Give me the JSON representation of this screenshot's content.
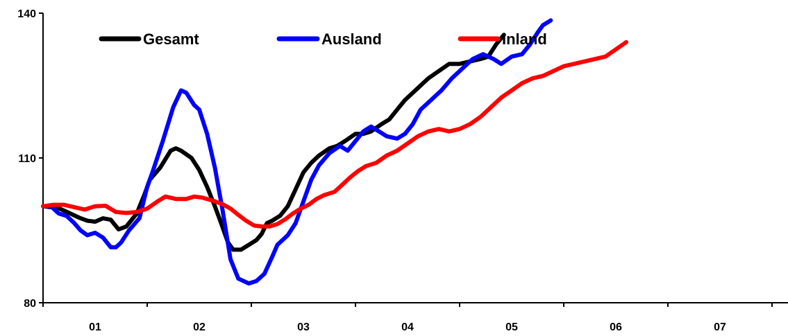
{
  "chart_data": {
    "type": "line",
    "title": "",
    "xlabel": "",
    "ylabel": "",
    "ylim": [
      80,
      140
    ],
    "y_ticks": [
      "80",
      "110",
      "140"
    ],
    "x_categories": [
      "01",
      "02",
      "03",
      "04",
      "05",
      "06",
      "07"
    ],
    "grid": false,
    "legend_position": "top-left, inside plot, horizontal",
    "series": [
      {
        "name": "Gesamt",
        "color": "#000000",
        "points": [
          [
            0.0,
            100.0
          ],
          [
            0.3,
            99.6
          ],
          [
            0.5,
            98.6
          ],
          [
            0.7,
            97.6
          ],
          [
            0.85,
            97.0
          ],
          [
            1.0,
            96.8
          ],
          [
            1.15,
            97.5
          ],
          [
            1.3,
            97.2
          ],
          [
            1.45,
            95.2
          ],
          [
            1.6,
            95.8
          ],
          [
            1.8,
            98.5
          ],
          [
            1.95,
            102.5
          ],
          [
            2.05,
            105.5
          ],
          [
            2.25,
            108.0
          ],
          [
            2.45,
            111.5
          ],
          [
            2.55,
            112.0
          ],
          [
            2.65,
            111.5
          ],
          [
            2.85,
            110.0
          ],
          [
            3.0,
            107.5
          ],
          [
            3.15,
            104.0
          ],
          [
            3.3,
            100.0
          ],
          [
            3.42,
            96.5
          ],
          [
            3.55,
            92.5
          ],
          [
            3.65,
            91.0
          ],
          [
            3.8,
            91.0
          ],
          [
            3.95,
            92.0
          ],
          [
            4.1,
            93.0
          ],
          [
            4.2,
            94.3
          ],
          [
            4.3,
            96.5
          ],
          [
            4.4,
            97.0
          ],
          [
            4.55,
            98.0
          ],
          [
            4.7,
            100.0
          ],
          [
            4.85,
            103.5
          ],
          [
            5.0,
            107.0
          ],
          [
            5.15,
            109.0
          ],
          [
            5.3,
            110.5
          ],
          [
            5.5,
            112.0
          ],
          [
            5.65,
            112.5
          ],
          [
            5.8,
            113.5
          ],
          [
            6.0,
            115.0
          ],
          [
            6.15,
            115.0
          ],
          [
            6.3,
            115.5
          ],
          [
            6.5,
            117.0
          ],
          [
            6.65,
            118.0
          ],
          [
            6.8,
            120.0
          ],
          [
            6.95,
            122.0
          ],
          [
            7.2,
            124.5
          ],
          [
            7.4,
            126.5
          ],
          [
            7.6,
            128.0
          ],
          [
            7.8,
            129.5
          ],
          [
            8.0,
            129.5
          ],
          [
            8.2,
            130.0
          ],
          [
            8.4,
            130.5
          ],
          [
            8.55,
            131.0
          ],
          [
            8.7,
            133.5
          ],
          [
            8.85,
            135.5
          ]
        ]
      },
      {
        "name": "Ausland",
        "color": "#0000ff",
        "points": [
          [
            0.0,
            100.0
          ],
          [
            0.15,
            100.0
          ],
          [
            0.3,
            98.5
          ],
          [
            0.45,
            98.0
          ],
          [
            0.6,
            96.5
          ],
          [
            0.72,
            95.0
          ],
          [
            0.85,
            94.0
          ],
          [
            1.0,
            94.5
          ],
          [
            1.15,
            93.5
          ],
          [
            1.3,
            91.5
          ],
          [
            1.4,
            91.5
          ],
          [
            1.5,
            92.5
          ],
          [
            1.65,
            95.0
          ],
          [
            1.85,
            97.5
          ],
          [
            2.0,
            104.0
          ],
          [
            2.1,
            107.0
          ],
          [
            2.3,
            113.5
          ],
          [
            2.5,
            120.5
          ],
          [
            2.65,
            124.0
          ],
          [
            2.75,
            123.5
          ],
          [
            2.9,
            121.0
          ],
          [
            3.0,
            120.0
          ],
          [
            3.15,
            115.0
          ],
          [
            3.3,
            108.0
          ],
          [
            3.45,
            99.0
          ],
          [
            3.6,
            89.0
          ],
          [
            3.75,
            85.0
          ],
          [
            3.95,
            84.0
          ],
          [
            4.1,
            84.5
          ],
          [
            4.25,
            86.0
          ],
          [
            4.4,
            89.5
          ],
          [
            4.5,
            92.0
          ],
          [
            4.7,
            94.0
          ],
          [
            4.85,
            96.5
          ],
          [
            5.0,
            101.0
          ],
          [
            5.15,
            105.5
          ],
          [
            5.3,
            108.5
          ],
          [
            5.5,
            111.0
          ],
          [
            5.7,
            112.5
          ],
          [
            5.85,
            111.5
          ],
          [
            6.0,
            113.5
          ],
          [
            6.15,
            115.5
          ],
          [
            6.3,
            116.5
          ],
          [
            6.45,
            115.5
          ],
          [
            6.6,
            114.5
          ],
          [
            6.8,
            114.0
          ],
          [
            6.95,
            115.0
          ],
          [
            7.1,
            117.0
          ],
          [
            7.25,
            120.0
          ],
          [
            7.45,
            122.0
          ],
          [
            7.65,
            124.0
          ],
          [
            7.85,
            126.5
          ],
          [
            8.05,
            128.5
          ],
          [
            8.25,
            130.5
          ],
          [
            8.45,
            131.5
          ],
          [
            8.65,
            130.5
          ],
          [
            8.8,
            129.5
          ],
          [
            9.0,
            131.0
          ],
          [
            9.2,
            131.5
          ],
          [
            9.35,
            133.5
          ],
          [
            9.5,
            136.0
          ],
          [
            9.6,
            137.5
          ],
          [
            9.75,
            138.5
          ]
        ]
      },
      {
        "name": "Inland",
        "color": "#ff0000",
        "points": [
          [
            0.0,
            100.0
          ],
          [
            0.2,
            100.3
          ],
          [
            0.4,
            100.3
          ],
          [
            0.6,
            99.8
          ],
          [
            0.8,
            99.3
          ],
          [
            1.0,
            100.0
          ],
          [
            1.2,
            100.1
          ],
          [
            1.4,
            98.8
          ],
          [
            1.6,
            98.6
          ],
          [
            1.8,
            98.8
          ],
          [
            2.0,
            99.5
          ],
          [
            2.2,
            101.0
          ],
          [
            2.35,
            102.0
          ],
          [
            2.55,
            101.5
          ],
          [
            2.75,
            101.5
          ],
          [
            2.9,
            102.0
          ],
          [
            3.05,
            101.8
          ],
          [
            3.25,
            101.2
          ],
          [
            3.45,
            100.4
          ],
          [
            3.6,
            99.5
          ],
          [
            3.75,
            98.2
          ],
          [
            3.9,
            97.0
          ],
          [
            4.05,
            96.0
          ],
          [
            4.2,
            95.8
          ],
          [
            4.35,
            95.8
          ],
          [
            4.5,
            96.3
          ],
          [
            4.65,
            97.3
          ],
          [
            4.8,
            98.5
          ],
          [
            4.95,
            99.5
          ],
          [
            5.1,
            100.3
          ],
          [
            5.25,
            101.5
          ],
          [
            5.4,
            102.3
          ],
          [
            5.6,
            103.0
          ],
          [
            5.75,
            104.5
          ],
          [
            5.9,
            106.0
          ],
          [
            6.05,
            107.3
          ],
          [
            6.2,
            108.3
          ],
          [
            6.4,
            109.0
          ],
          [
            6.6,
            110.5
          ],
          [
            6.8,
            111.5
          ],
          [
            7.0,
            113.0
          ],
          [
            7.2,
            114.5
          ],
          [
            7.4,
            115.5
          ],
          [
            7.6,
            116.0
          ],
          [
            7.8,
            115.5
          ],
          [
            8.0,
            116.0
          ],
          [
            8.2,
            117.0
          ],
          [
            8.4,
            118.5
          ],
          [
            8.6,
            120.5
          ],
          [
            8.8,
            122.5
          ],
          [
            9.0,
            124.0
          ],
          [
            9.2,
            125.5
          ],
          [
            9.4,
            126.5
          ],
          [
            9.6,
            127.0
          ],
          [
            9.8,
            128.0
          ],
          [
            10.0,
            129.0
          ],
          [
            10.2,
            129.5
          ],
          [
            10.4,
            130.0
          ],
          [
            10.6,
            130.5
          ],
          [
            10.8,
            131.0
          ],
          [
            11.0,
            132.5
          ],
          [
            11.2,
            134.0
          ]
        ]
      }
    ]
  }
}
